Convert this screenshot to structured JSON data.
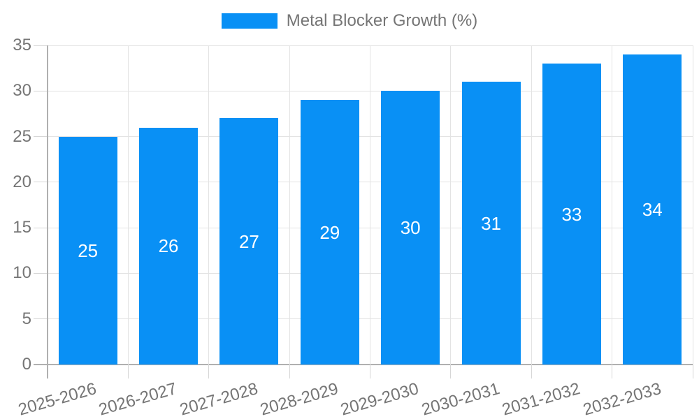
{
  "legend": {
    "label": "Metal Blocker Growth (%)"
  },
  "colors": {
    "bar": "#0990F5",
    "axis_text": "#757575",
    "bar_label_text": "#ffffff",
    "grid_light": "#e3e3e3",
    "grid_dark": "#b0b0b0",
    "background": "#ffffff"
  },
  "chart_data": {
    "type": "bar",
    "title": "",
    "categories": [
      "2025-2026",
      "2026-2027",
      "2027-2028",
      "2028-2029",
      "2029-2030",
      "2030-2031",
      "2031-2032",
      "2032-2033"
    ],
    "series": [
      {
        "name": "Metal Blocker Growth (%)",
        "values": [
          25,
          26,
          27,
          29,
          30,
          31,
          33,
          34
        ]
      }
    ],
    "xlabel": "",
    "ylabel": "",
    "ylim": [
      0,
      35
    ],
    "ytick_step": 5,
    "ytick_labels": [
      "0",
      "5",
      "10",
      "15",
      "20",
      "25",
      "30",
      "35"
    ],
    "grid": "both",
    "legend_position": "top-center",
    "data_labels": "inside-center",
    "x_label_rotation_deg": -16
  }
}
